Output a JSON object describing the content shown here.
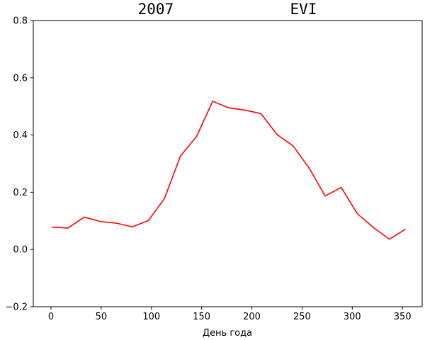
{
  "chart_data": {
    "type": "line",
    "title": "2007             EVI",
    "xlabel": "День года",
    "ylabel": "",
    "xlim": [
      -17.6,
      369.6
    ],
    "ylim": [
      -0.2,
      0.8
    ],
    "xticks": [
      0,
      50,
      100,
      150,
      200,
      250,
      300,
      350
    ],
    "yticks": [
      -0.2,
      0.0,
      0.2,
      0.4,
      0.6,
      0.8
    ],
    "grid": false,
    "series": [
      {
        "color": "#ff0000",
        "x": [
          1,
          17,
          33,
          49,
          65,
          81,
          97,
          113,
          129,
          145,
          161,
          177,
          193,
          209,
          225,
          241,
          257,
          273,
          289,
          305,
          321,
          337,
          353
        ],
        "y": [
          0.078,
          0.075,
          0.113,
          0.098,
          0.092,
          0.079,
          0.101,
          0.178,
          0.327,
          0.395,
          0.518,
          0.495,
          0.487,
          0.475,
          0.402,
          0.362,
          0.285,
          0.187,
          0.217,
          0.125,
          0.077,
          0.036,
          0.071
        ]
      }
    ]
  }
}
